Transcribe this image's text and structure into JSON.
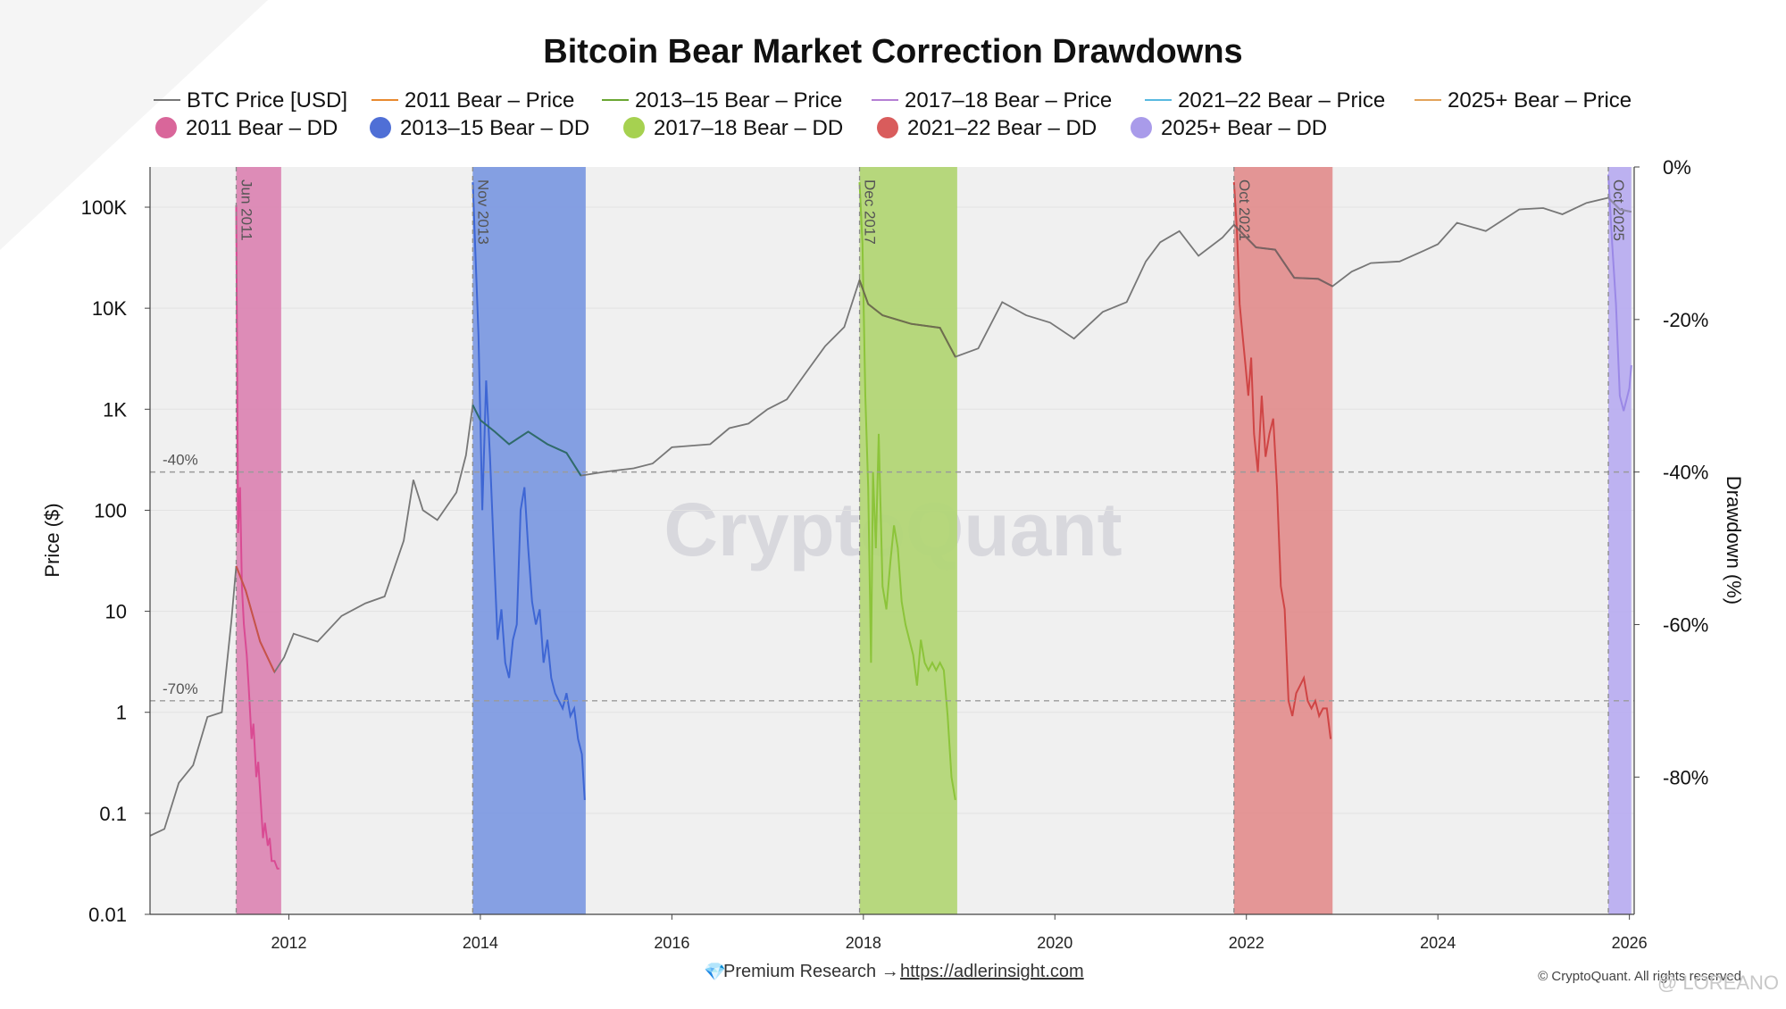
{
  "chart_data": {
    "type": "line",
    "title": "Bitcoin Bear Market Correction Drawdowns",
    "ylabel_left": "Price ($)",
    "ylabel_right": "Drawdown (%)",
    "y_scale_left": "log",
    "ylim_left": [
      0.01,
      250000
    ],
    "ylim_right": [
      0,
      -98
    ],
    "xlim": [
      2010.55,
      2026.05
    ],
    "grid": true,
    "legend_placement": "top",
    "x_ticks": [
      "2012",
      "2014",
      "2016",
      "2018",
      "2020",
      "2022",
      "2024",
      "2026"
    ],
    "y_ticks_left": [
      "0.01",
      "0.1",
      "1",
      "10",
      "100",
      "1K",
      "10K",
      "100K"
    ],
    "y_ticks_right": [
      "0%",
      "-20%",
      "-40%",
      "-60%",
      "-80%"
    ],
    "reference_lines": [
      {
        "label": "-40%",
        "value": -40
      },
      {
        "label": "-70%",
        "value": -70
      }
    ],
    "legend": {
      "price_lines": [
        {
          "name": "BTC Price [USD]",
          "color": "#777777"
        },
        {
          "name": "2011 Bear – Price",
          "color": "#e8892f"
        },
        {
          "name": "2013–15 Bear – Price",
          "color": "#6aa632"
        },
        {
          "name": "2017–18 Bear – Price",
          "color": "#b57fd4"
        },
        {
          "name": "2021–22 Bear – Price",
          "color": "#58b9e0"
        },
        {
          "name": "2025+ Bear – Price",
          "color": "#e3a35a"
        }
      ],
      "drawdowns": [
        {
          "name": "2011 Bear – DD",
          "color": "#d9669a"
        },
        {
          "name": "2013–15 Bear – DD",
          "color": "#4f6fd6"
        },
        {
          "name": "2017–18 Bear – DD",
          "color": "#a6d150"
        },
        {
          "name": "2021–22 Bear – DD",
          "color": "#d95c5c"
        },
        {
          "name": "2025+ Bear – DD",
          "color": "#a99bea"
        }
      ]
    },
    "bear_markets": [
      {
        "label": "Jun 2011",
        "start": 2011.45,
        "end": 2011.92,
        "fill": "#dc88b4",
        "line": "#d94b93",
        "price_line": "#c8534a",
        "dd": [
          [
            2011.45,
            -5
          ],
          [
            2011.47,
            -48
          ],
          [
            2011.49,
            -42
          ],
          [
            2011.51,
            -55
          ],
          [
            2011.53,
            -60
          ],
          [
            2011.56,
            -64
          ],
          [
            2011.58,
            -68
          ],
          [
            2011.61,
            -75
          ],
          [
            2011.63,
            -73
          ],
          [
            2011.66,
            -80
          ],
          [
            2011.68,
            -78
          ],
          [
            2011.71,
            -84
          ],
          [
            2011.73,
            -88
          ],
          [
            2011.75,
            -86
          ],
          [
            2011.78,
            -89
          ],
          [
            2011.8,
            -88
          ],
          [
            2011.82,
            -91
          ],
          [
            2011.85,
            -91
          ],
          [
            2011.88,
            -92
          ],
          [
            2011.9,
            -92
          ]
        ]
      },
      {
        "label": "Nov 2013",
        "start": 2013.92,
        "end": 2015.1,
        "fill": "#7f9be2",
        "line": "#3e66d4",
        "price_line": "#2f6b6b",
        "dd": [
          [
            2013.92,
            -2
          ],
          [
            2013.98,
            -22
          ],
          [
            2014.02,
            -45
          ],
          [
            2014.06,
            -28
          ],
          [
            2014.1,
            -38
          ],
          [
            2014.14,
            -50
          ],
          [
            2014.18,
            -62
          ],
          [
            2014.22,
            -58
          ],
          [
            2014.26,
            -65
          ],
          [
            2014.3,
            -67
          ],
          [
            2014.34,
            -62
          ],
          [
            2014.38,
            -60
          ],
          [
            2014.42,
            -45
          ],
          [
            2014.46,
            -42
          ],
          [
            2014.5,
            -50
          ],
          [
            2014.54,
            -57
          ],
          [
            2014.58,
            -60
          ],
          [
            2014.62,
            -58
          ],
          [
            2014.66,
            -65
          ],
          [
            2014.7,
            -62
          ],
          [
            2014.74,
            -67
          ],
          [
            2014.78,
            -69
          ],
          [
            2014.82,
            -70
          ],
          [
            2014.86,
            -71
          ],
          [
            2014.9,
            -69
          ],
          [
            2014.94,
            -72
          ],
          [
            2014.98,
            -71
          ],
          [
            2015.02,
            -75
          ],
          [
            2015.06,
            -77
          ],
          [
            2015.09,
            -83
          ]
        ]
      },
      {
        "label": "Dec 2017",
        "start": 2017.96,
        "end": 2018.98,
        "fill": "#b3d677",
        "line": "#8cc43a",
        "price_line": "#6e6e4e",
        "dd": [
          [
            2017.96,
            -2
          ],
          [
            2017.99,
            -10
          ],
          [
            2018.02,
            -30
          ],
          [
            2018.05,
            -42
          ],
          [
            2018.08,
            -65
          ],
          [
            2018.1,
            -40
          ],
          [
            2018.13,
            -50
          ],
          [
            2018.16,
            -35
          ],
          [
            2018.2,
            -55
          ],
          [
            2018.24,
            -58
          ],
          [
            2018.28,
            -52
          ],
          [
            2018.32,
            -47
          ],
          [
            2018.36,
            -50
          ],
          [
            2018.4,
            -57
          ],
          [
            2018.44,
            -60
          ],
          [
            2018.48,
            -62
          ],
          [
            2018.52,
            -64
          ],
          [
            2018.56,
            -68
          ],
          [
            2018.6,
            -62
          ],
          [
            2018.64,
            -65
          ],
          [
            2018.68,
            -66
          ],
          [
            2018.72,
            -65
          ],
          [
            2018.76,
            -66
          ],
          [
            2018.8,
            -65
          ],
          [
            2018.84,
            -66
          ],
          [
            2018.88,
            -72
          ],
          [
            2018.92,
            -80
          ],
          [
            2018.96,
            -83
          ]
        ]
      },
      {
        "label": "Oct 2021",
        "start": 2021.87,
        "end": 2022.9,
        "fill": "#e39090",
        "line": "#cf4545",
        "price_line": "#7a6262",
        "dd": [
          [
            2021.87,
            -2
          ],
          [
            2021.9,
            -8
          ],
          [
            2021.93,
            -18
          ],
          [
            2021.96,
            -22
          ],
          [
            2021.99,
            -26
          ],
          [
            2022.02,
            -30
          ],
          [
            2022.05,
            -25
          ],
          [
            2022.08,
            -35
          ],
          [
            2022.12,
            -40
          ],
          [
            2022.16,
            -30
          ],
          [
            2022.2,
            -38
          ],
          [
            2022.24,
            -35
          ],
          [
            2022.28,
            -33
          ],
          [
            2022.32,
            -42
          ],
          [
            2022.36,
            -55
          ],
          [
            2022.4,
            -58
          ],
          [
            2022.44,
            -70
          ],
          [
            2022.48,
            -72
          ],
          [
            2022.52,
            -69
          ],
          [
            2022.56,
            -68
          ],
          [
            2022.6,
            -67
          ],
          [
            2022.64,
            -70
          ],
          [
            2022.68,
            -71
          ],
          [
            2022.72,
            -70
          ],
          [
            2022.76,
            -72
          ],
          [
            2022.8,
            -71
          ],
          [
            2022.84,
            -71
          ],
          [
            2022.88,
            -75
          ]
        ]
      },
      {
        "label": "Oct 2025",
        "start": 2025.78,
        "end": 2026.02,
        "fill": "#b9aef0",
        "line": "#9a88e6",
        "price_line": "#8f8aa8",
        "dd": [
          [
            2025.78,
            -1
          ],
          [
            2025.82,
            -10
          ],
          [
            2025.86,
            -18
          ],
          [
            2025.9,
            -30
          ],
          [
            2025.94,
            -32
          ],
          [
            2025.98,
            -30
          ],
          [
            2026.0,
            -29
          ],
          [
            2026.02,
            -26
          ]
        ]
      }
    ],
    "btc_price": [
      [
        2010.55,
        0.06
      ],
      [
        2010.7,
        0.07
      ],
      [
        2010.85,
        0.2
      ],
      [
        2011.0,
        0.3
      ],
      [
        2011.15,
        0.9
      ],
      [
        2011.3,
        1.0
      ],
      [
        2011.4,
        8
      ],
      [
        2011.45,
        28
      ],
      [
        2011.55,
        16
      ],
      [
        2011.7,
        5
      ],
      [
        2011.85,
        2.5
      ],
      [
        2011.95,
        3.5
      ],
      [
        2012.05,
        6
      ],
      [
        2012.3,
        5
      ],
      [
        2012.55,
        9
      ],
      [
        2012.8,
        12
      ],
      [
        2013.0,
        14
      ],
      [
        2013.2,
        50
      ],
      [
        2013.3,
        200
      ],
      [
        2013.4,
        100
      ],
      [
        2013.55,
        80
      ],
      [
        2013.75,
        150
      ],
      [
        2013.85,
        350
      ],
      [
        2013.92,
        1100
      ],
      [
        2014.0,
        780
      ],
      [
        2014.15,
        600
      ],
      [
        2014.3,
        450
      ],
      [
        2014.5,
        600
      ],
      [
        2014.7,
        450
      ],
      [
        2014.9,
        370
      ],
      [
        2015.05,
        220
      ],
      [
        2015.3,
        240
      ],
      [
        2015.6,
        260
      ],
      [
        2015.8,
        290
      ],
      [
        2016.0,
        420
      ],
      [
        2016.4,
        450
      ],
      [
        2016.6,
        650
      ],
      [
        2016.8,
        720
      ],
      [
        2017.0,
        1000
      ],
      [
        2017.2,
        1250
      ],
      [
        2017.4,
        2300
      ],
      [
        2017.6,
        4200
      ],
      [
        2017.8,
        6500
      ],
      [
        2017.96,
        19000
      ],
      [
        2018.05,
        11000
      ],
      [
        2018.2,
        8500
      ],
      [
        2018.5,
        7000
      ],
      [
        2018.8,
        6400
      ],
      [
        2018.96,
        3300
      ],
      [
        2019.2,
        4000
      ],
      [
        2019.45,
        11500
      ],
      [
        2019.7,
        8500
      ],
      [
        2019.95,
        7200
      ],
      [
        2020.2,
        5000
      ],
      [
        2020.5,
        9200
      ],
      [
        2020.75,
        11500
      ],
      [
        2020.95,
        29000
      ],
      [
        2021.1,
        45000
      ],
      [
        2021.3,
        58000
      ],
      [
        2021.5,
        33000
      ],
      [
        2021.75,
        50000
      ],
      [
        2021.87,
        67000
      ],
      [
        2022.1,
        40000
      ],
      [
        2022.3,
        38000
      ],
      [
        2022.5,
        20000
      ],
      [
        2022.75,
        19500
      ],
      [
        2022.9,
        16500
      ],
      [
        2023.1,
        23000
      ],
      [
        2023.3,
        28000
      ],
      [
        2023.6,
        29000
      ],
      [
        2023.85,
        37000
      ],
      [
        2024.0,
        43000
      ],
      [
        2024.2,
        70000
      ],
      [
        2024.5,
        58000
      ],
      [
        2024.85,
        95000
      ],
      [
        2025.1,
        98000
      ],
      [
        2025.3,
        85000
      ],
      [
        2025.55,
        110000
      ],
      [
        2025.78,
        124000
      ],
      [
        2025.9,
        95000
      ],
      [
        2026.02,
        90000
      ]
    ]
  },
  "watermark": "CryptoQuant",
  "footer": {
    "premium_icon": "diamond-icon",
    "premium_text": "Premium Research →",
    "premium_link": "https://adlerinsight.com",
    "copyright": "© CryptoQuant. All rights reserved"
  },
  "overlay_handle": "@ LOREANO"
}
